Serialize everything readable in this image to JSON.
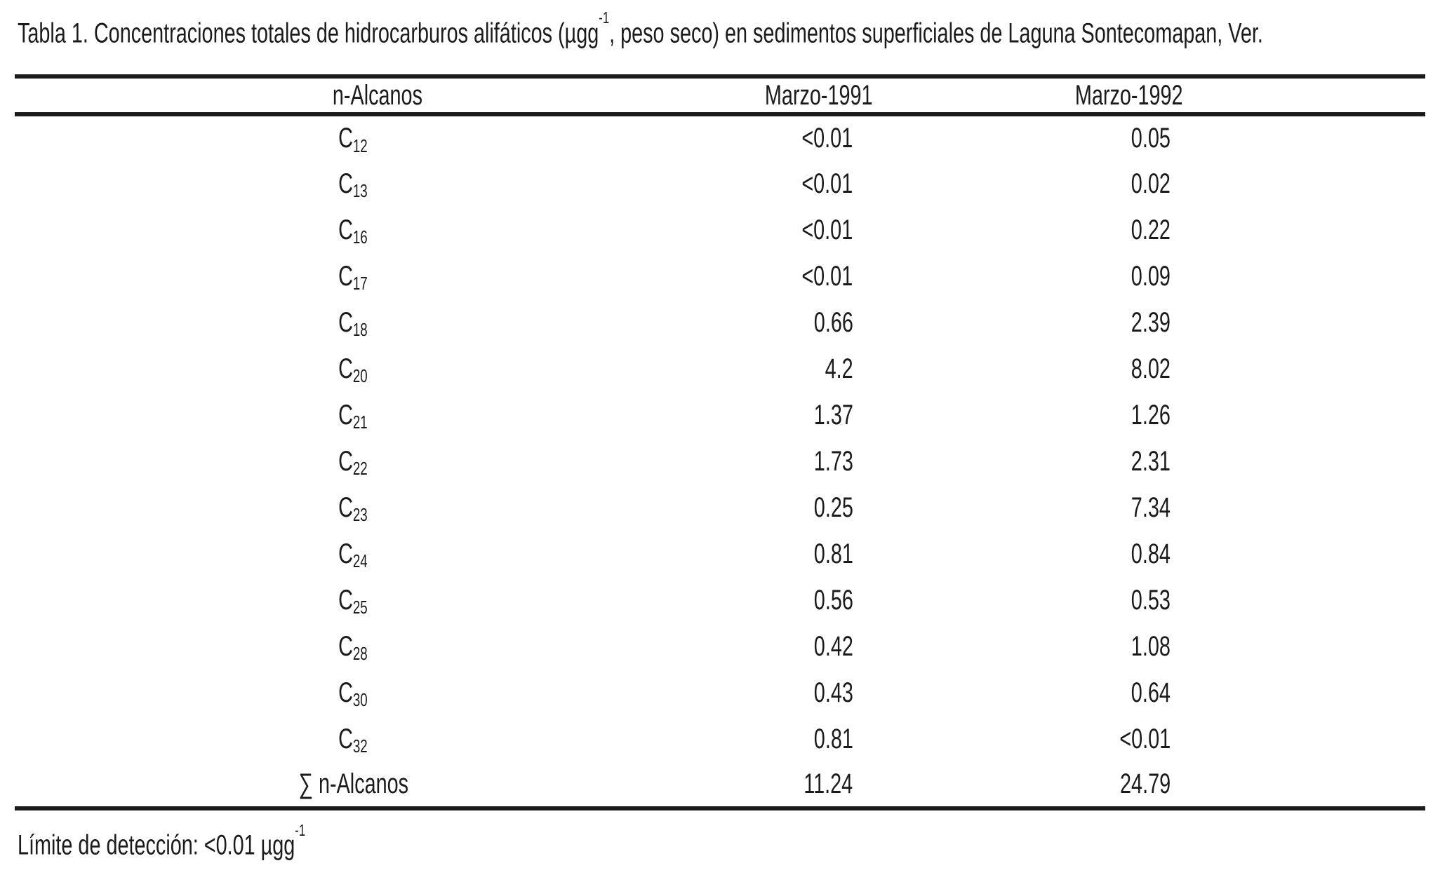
{
  "caption": {
    "pre": "Tabla 1. Concentraciones totales de hidrocarburos alifáticos (µgg",
    "sup": "-1",
    "post": ", peso seco) en sedimentos superficiales de Laguna Sontecomapan, Ver."
  },
  "table": {
    "columns": [
      "n-Alcanos",
      "Marzo-1991",
      "Marzo-1992"
    ],
    "rows": [
      {
        "label": "C",
        "sub": "12",
        "v1991": "<0.01",
        "v1992": "0.05"
      },
      {
        "label": "C",
        "sub": "13",
        "v1991": "<0.01",
        "v1992": "0.02"
      },
      {
        "label": "C",
        "sub": "16",
        "v1991": "<0.01",
        "v1992": "0.22"
      },
      {
        "label": "C",
        "sub": "17",
        "v1991": "<0.01",
        "v1992": "0.09"
      },
      {
        "label": "C",
        "sub": "18",
        "v1991": "0.66",
        "v1992": "2.39"
      },
      {
        "label": "C",
        "sub": "20",
        "v1991": "4.2",
        "v1992": "8.02"
      },
      {
        "label": "C",
        "sub": "21",
        "v1991": "1.37",
        "v1992": "1.26"
      },
      {
        "label": "C",
        "sub": "22",
        "v1991": "1.73",
        "v1992": "2.31"
      },
      {
        "label": "C",
        "sub": "23",
        "v1991": "0.25",
        "v1992": "7.34"
      },
      {
        "label": "C",
        "sub": "24",
        "v1991": "0.81",
        "v1992": "0.84"
      },
      {
        "label": "C",
        "sub": "25",
        "v1991": "0.56",
        "v1992": "0.53"
      },
      {
        "label": "C",
        "sub": "28",
        "v1991": "0.42",
        "v1992": "1.08"
      },
      {
        "label": "C",
        "sub": "30",
        "v1991": "0.43",
        "v1992": "0.64"
      },
      {
        "label": "C",
        "sub": "32",
        "v1991": "0.81",
        "v1992": "<0.01"
      },
      {
        "label": "∑ n-Alcanos",
        "sub": "",
        "v1991": "11.24",
        "v1992": "24.79"
      }
    ]
  },
  "footnote": {
    "pre": "Límite de detección: <0.01 µgg",
    "sup": "-1"
  },
  "colors": {
    "text": "#1b1b1b",
    "rule": "#1b1b1b",
    "background": "#ffffff"
  }
}
